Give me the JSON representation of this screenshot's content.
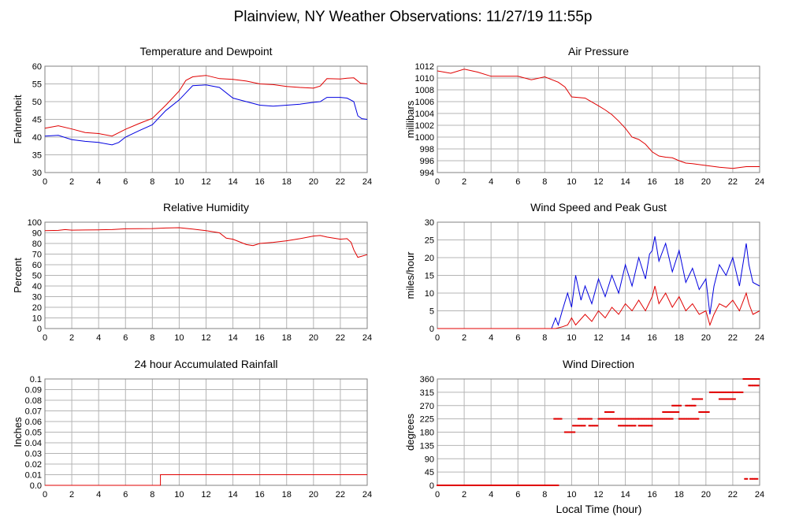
{
  "page": {
    "title": "Plainview, NY Weather Observations: 11/27/19 11:55p",
    "x_axis_label": "Local Time (hour)"
  },
  "colors": {
    "red": "#e00000",
    "blue": "#0000e0",
    "grid": "#b4b4b4"
  },
  "chart_data": [
    {
      "id": "temp",
      "type": "line",
      "title": "Temperature and Dewpoint",
      "ylabel": "Fahrenheit",
      "xlabel": "",
      "xlim": [
        0,
        24
      ],
      "ylim": [
        30,
        60
      ],
      "xticks": [
        0,
        2,
        4,
        6,
        8,
        10,
        12,
        14,
        16,
        18,
        20,
        22,
        24
      ],
      "yticks": [
        30,
        35,
        40,
        45,
        50,
        55,
        60
      ],
      "grid": true,
      "series": [
        {
          "color": "#e00000",
          "x": [
            0,
            1,
            2,
            3,
            4,
            5,
            6,
            7,
            8,
            9,
            10,
            10.5,
            11,
            12,
            13,
            14,
            15,
            16,
            17,
            18,
            19,
            20,
            20.5,
            21,
            22,
            22.5,
            23,
            23.5,
            24
          ],
          "y": [
            42.5,
            43.2,
            42.3,
            41.3,
            41,
            40.3,
            42.2,
            43.8,
            45.3,
            49,
            53,
            56,
            57,
            57.4,
            56.5,
            56.3,
            55.8,
            55,
            54.8,
            54.3,
            54,
            53.8,
            54.4,
            56.5,
            56.4,
            56.6,
            56.7,
            55.2,
            55
          ]
        },
        {
          "color": "#0000e0",
          "x": [
            0,
            1,
            2,
            3,
            4,
            5,
            5.5,
            6,
            7,
            8,
            9,
            10,
            10.5,
            11,
            12,
            13,
            14,
            15,
            16,
            17,
            18,
            19,
            20,
            20.5,
            21,
            22,
            22.5,
            23,
            23.3,
            23.6,
            24
          ],
          "y": [
            40.3,
            40.5,
            39.3,
            38.8,
            38.5,
            37.8,
            38.5,
            40,
            41.8,
            43.5,
            47.5,
            50.5,
            52.5,
            54.5,
            54.7,
            54,
            51,
            50,
            49,
            48.7,
            49,
            49.3,
            49.8,
            50,
            51.2,
            51.2,
            51,
            50,
            46,
            45.2,
            45
          ]
        }
      ]
    },
    {
      "id": "pressure",
      "type": "line",
      "title": "Air Pressure",
      "ylabel": "millibars",
      "xlabel": "",
      "xlim": [
        0,
        24
      ],
      "ylim": [
        994,
        1012
      ],
      "xticks": [
        0,
        2,
        4,
        6,
        8,
        10,
        12,
        14,
        16,
        18,
        20,
        22,
        24
      ],
      "yticks": [
        994,
        996,
        998,
        1000,
        1002,
        1004,
        1006,
        1008,
        1010,
        1012
      ],
      "grid": true,
      "series": [
        {
          "color": "#e00000",
          "x": [
            0,
            1,
            2,
            3,
            4,
            5,
            6,
            7,
            8,
            9,
            9.5,
            10,
            11,
            12,
            12.5,
            13,
            13.5,
            14,
            14.5,
            15,
            15.5,
            16,
            16.5,
            17,
            17.5,
            18,
            18.5,
            19,
            20,
            21,
            22,
            23,
            24
          ],
          "y": [
            1011.2,
            1010.8,
            1011.5,
            1011,
            1010.3,
            1010.3,
            1010.3,
            1009.7,
            1010.2,
            1009.3,
            1008.5,
            1006.8,
            1006.6,
            1005.3,
            1004.6,
            1003.8,
            1002.7,
            1001.5,
            1000,
            999.6,
            998.8,
            997.5,
            996.8,
            996.6,
            996.5,
            996,
            995.6,
            995.5,
            995.2,
            994.9,
            994.7,
            995,
            995
          ]
        }
      ]
    },
    {
      "id": "humidity",
      "type": "line",
      "title": "Relative Humidity",
      "ylabel": "Percent",
      "xlabel": "",
      "xlim": [
        0,
        24
      ],
      "ylim": [
        0,
        100
      ],
      "xticks": [
        0,
        2,
        4,
        6,
        8,
        10,
        12,
        14,
        16,
        18,
        20,
        22,
        24
      ],
      "yticks": [
        0,
        10,
        20,
        30,
        40,
        50,
        60,
        70,
        80,
        90,
        100
      ],
      "grid": true,
      "series": [
        {
          "color": "#e00000",
          "x": [
            0,
            1,
            1.5,
            2,
            3,
            4,
            5,
            6,
            7,
            8,
            9,
            10,
            11,
            12,
            13,
            13.5,
            14,
            15,
            15.5,
            16,
            17,
            18,
            19,
            20,
            20.5,
            21,
            22,
            22.5,
            22.8,
            23,
            23.3,
            24
          ],
          "y": [
            92,
            92.3,
            93,
            92.5,
            92.7,
            92.8,
            93,
            93.8,
            93.9,
            94,
            94.5,
            94.8,
            93.5,
            92,
            90,
            85,
            84,
            79,
            78,
            80,
            81,
            82.5,
            84.5,
            87,
            87.5,
            86,
            84,
            84.5,
            81,
            74,
            67,
            69.5
          ]
        }
      ]
    },
    {
      "id": "wind",
      "type": "line",
      "title": "Wind Speed and Peak Gust",
      "ylabel": "miles/hour",
      "xlabel": "",
      "xlim": [
        0,
        24
      ],
      "ylim": [
        0,
        30
      ],
      "xticks": [
        0,
        2,
        4,
        6,
        8,
        10,
        12,
        14,
        16,
        18,
        20,
        22,
        24
      ],
      "yticks": [
        0,
        5,
        10,
        15,
        20,
        25,
        30
      ],
      "grid": true,
      "series": [
        {
          "color": "#0000e0",
          "x": [
            0,
            8.5,
            8.8,
            9,
            9.3,
            9.7,
            10,
            10.3,
            10.7,
            11,
            11.5,
            12,
            12.5,
            13,
            13.5,
            14,
            14.5,
            15,
            15.5,
            15.8,
            16,
            16.2,
            16.5,
            17,
            17.5,
            18,
            18.5,
            19,
            19.5,
            20,
            20.3,
            20.6,
            21,
            21.5,
            22,
            22.5,
            23,
            23.2,
            23.5,
            24
          ],
          "y": [
            0,
            0,
            3,
            1,
            5,
            10,
            6,
            15,
            8,
            12,
            7,
            14,
            9,
            15,
            10,
            18,
            12,
            20,
            14,
            21,
            22,
            26,
            19,
            24,
            16,
            22,
            13,
            17,
            11,
            14,
            4,
            12,
            18,
            15,
            20,
            12,
            24,
            18,
            13,
            12
          ]
        },
        {
          "color": "#e00000",
          "x": [
            0,
            8.8,
            9.3,
            9.7,
            10,
            10.3,
            11,
            11.5,
            12,
            12.5,
            13,
            13.5,
            14,
            14.5,
            15,
            15.5,
            16,
            16.2,
            16.5,
            17,
            17.5,
            18,
            18.5,
            19,
            19.5,
            20,
            20.3,
            20.6,
            21,
            21.5,
            22,
            22.5,
            23,
            23.2,
            23.5,
            24
          ],
          "y": [
            0,
            0,
            0.5,
            1,
            3,
            1,
            4,
            2,
            5,
            3,
            6,
            4,
            7,
            5,
            8,
            5,
            9,
            12,
            7,
            10,
            6,
            9,
            5,
            7,
            4,
            5,
            1,
            4,
            7,
            6,
            8,
            5,
            10,
            7,
            4,
            5
          ]
        }
      ]
    },
    {
      "id": "rain",
      "type": "line",
      "title": "24 hour Accumulated Rainfall",
      "ylabel": "Inches",
      "xlabel": "",
      "xlim": [
        0,
        24
      ],
      "ylim": [
        0,
        0.1
      ],
      "xticks": [
        0,
        2,
        4,
        6,
        8,
        10,
        12,
        14,
        16,
        18,
        20,
        22,
        24
      ],
      "yticks": [
        0,
        0.01,
        0.02,
        0.03,
        0.04,
        0.05,
        0.06,
        0.07,
        0.08,
        0.09,
        0.1
      ],
      "ytick_labels": [
        "0.0",
        "0.01",
        "0.02",
        "0.03",
        "0.04",
        "0.05",
        "0.06",
        "0.07",
        "0.08",
        "0.09",
        "0.1"
      ],
      "grid": true,
      "series": [
        {
          "color": "#e00000",
          "x": [
            0,
            8.6,
            8.6,
            24
          ],
          "y": [
            0,
            0,
            0.01,
            0.01
          ]
        }
      ]
    },
    {
      "id": "direction",
      "type": "scatter",
      "title": "Wind Direction",
      "ylabel": "degrees",
      "xlabel": "Local Time (hour)",
      "xlim": [
        0,
        24
      ],
      "ylim": [
        0,
        360
      ],
      "xticks": [
        0,
        2,
        4,
        6,
        8,
        10,
        12,
        14,
        16,
        18,
        20,
        22,
        24
      ],
      "yticks": [
        0,
        45,
        90,
        135,
        180,
        225,
        270,
        315,
        360
      ],
      "grid": true,
      "points": [
        {
          "x0": 0,
          "x1": 9.0,
          "y": 0
        },
        {
          "x0": 8.7,
          "x1": 9.3,
          "y": 225
        },
        {
          "x0": 9.5,
          "x1": 10.3,
          "y": 180
        },
        {
          "x0": 10.1,
          "x1": 11.0,
          "y": 202
        },
        {
          "x0": 10.5,
          "x1": 11.5,
          "y": 225
        },
        {
          "x0": 11.3,
          "x1": 12.0,
          "y": 202
        },
        {
          "x0": 12.0,
          "x1": 15.0,
          "y": 225
        },
        {
          "x0": 12.5,
          "x1": 13.2,
          "y": 248
        },
        {
          "x0": 13.5,
          "x1": 14.8,
          "y": 202
        },
        {
          "x0": 15.0,
          "x1": 16.0,
          "y": 202
        },
        {
          "x0": 15.0,
          "x1": 17.6,
          "y": 225
        },
        {
          "x0": 16.8,
          "x1": 18.0,
          "y": 248
        },
        {
          "x0": 17.5,
          "x1": 18.2,
          "y": 270
        },
        {
          "x0": 18.0,
          "x1": 19.5,
          "y": 225
        },
        {
          "x0": 18.5,
          "x1": 19.3,
          "y": 270
        },
        {
          "x0": 19.0,
          "x1": 19.8,
          "y": 292
        },
        {
          "x0": 19.5,
          "x1": 20.3,
          "y": 248
        },
        {
          "x0": 20.3,
          "x1": 22.8,
          "y": 315
        },
        {
          "x0": 21.0,
          "x1": 22.2,
          "y": 292
        },
        {
          "x0": 22.8,
          "x1": 24.0,
          "y": 360
        },
        {
          "x0": 23.2,
          "x1": 24.0,
          "y": 338
        },
        {
          "x0": 23.3,
          "x1": 23.9,
          "y": 22
        },
        {
          "x0": 22.9,
          "x1": 23.1,
          "y": 22
        }
      ]
    }
  ]
}
